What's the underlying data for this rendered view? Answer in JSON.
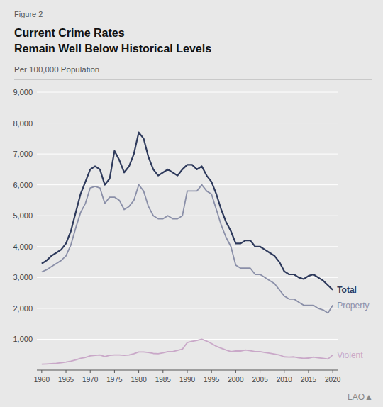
{
  "chart_data": {
    "type": "line",
    "title": [
      "Current Crime Rates",
      "Remain Well Below Historical Levels"
    ],
    "subtitle": "Per 100,000 Population",
    "annotations": [
      "Figure 2",
      "LAO▲"
    ],
    "x": [
      1960,
      1961,
      1962,
      1963,
      1964,
      1965,
      1966,
      1967,
      1968,
      1969,
      1970,
      1971,
      1972,
      1973,
      1974,
      1975,
      1976,
      1977,
      1978,
      1979,
      1980,
      1981,
      1982,
      1983,
      1984,
      1985,
      1986,
      1987,
      1988,
      1989,
      1990,
      1991,
      1992,
      1993,
      1994,
      1995,
      1996,
      1997,
      1998,
      1999,
      2000,
      2001,
      2002,
      2003,
      2004,
      2005,
      2006,
      2007,
      2008,
      2009,
      2010,
      2011,
      2012,
      2013,
      2014,
      2015,
      2016,
      2017,
      2018,
      2019,
      2020
    ],
    "series": [
      {
        "name": "Total",
        "color": "#2e3a5c",
        "values": [
          3450,
          3550,
          3700,
          3800,
          3900,
          4100,
          4500,
          5100,
          5700,
          6100,
          6500,
          6600,
          6500,
          6000,
          6200,
          7100,
          6800,
          6400,
          6600,
          7000,
          7700,
          7500,
          6900,
          6500,
          6300,
          6400,
          6500,
          6400,
          6300,
          6500,
          6650,
          6650,
          6500,
          6600,
          6300,
          6100,
          5700,
          5200,
          4800,
          4500,
          4100,
          4100,
          4200,
          4200,
          4000,
          4000,
          3900,
          3800,
          3700,
          3500,
          3200,
          3100,
          3100,
          3000,
          2950,
          3050,
          3100,
          3000,
          2900,
          2750,
          2600
        ]
      },
      {
        "name": "Property",
        "color": "#8a8fa8",
        "values": [
          3180,
          3250,
          3350,
          3450,
          3550,
          3700,
          4050,
          4600,
          5100,
          5400,
          5900,
          5950,
          5900,
          5400,
          5600,
          5600,
          5500,
          5200,
          5300,
          5500,
          6000,
          5800,
          5300,
          5000,
          4900,
          4900,
          5000,
          4900,
          4900,
          5000,
          5800,
          5800,
          5800,
          6000,
          5800,
          5700,
          5200,
          4700,
          4300,
          4000,
          3400,
          3300,
          3300,
          3300,
          3100,
          3100,
          3000,
          2900,
          2800,
          2600,
          2400,
          2300,
          2300,
          2200,
          2100,
          2100,
          2100,
          2000,
          1950,
          1850,
          2100
        ]
      },
      {
        "name": "Violent",
        "color": "#c9a8c8",
        "values": [
          190,
          200,
          210,
          220,
          240,
          260,
          290,
          330,
          380,
          410,
          460,
          480,
          490,
          440,
          480,
          490,
          490,
          480,
          490,
          530,
          590,
          590,
          570,
          540,
          530,
          560,
          600,
          600,
          640,
          680,
          890,
          930,
          960,
          1000,
          940,
          860,
          770,
          710,
          650,
          600,
          620,
          620,
          650,
          630,
          600,
          600,
          570,
          550,
          520,
          490,
          430,
          420,
          430,
          400,
          380,
          390,
          420,
          400,
          380,
          360,
          490
        ]
      }
    ],
    "xlim": [
      1959,
      2021
    ],
    "xticks": [
      1960,
      1965,
      1970,
      1975,
      1980,
      1985,
      1990,
      1995,
      2000,
      2005,
      2010,
      2015,
      2020
    ],
    "ylim": [
      0,
      9000
    ],
    "yticks": [
      {
        "value": 1000,
        "label": "1,000"
      },
      {
        "value": 2000,
        "label": "2,000"
      },
      {
        "value": 3000,
        "label": "3,000"
      },
      {
        "value": 4000,
        "label": "4,000"
      },
      {
        "value": 5000,
        "label": "5,000"
      },
      {
        "value": 6000,
        "label": "6,000"
      },
      {
        "value": 7000,
        "label": "7,000"
      },
      {
        "value": 8000,
        "label": "8,000"
      },
      {
        "value": 9000,
        "label": "9,000"
      }
    ],
    "grid": true
  }
}
